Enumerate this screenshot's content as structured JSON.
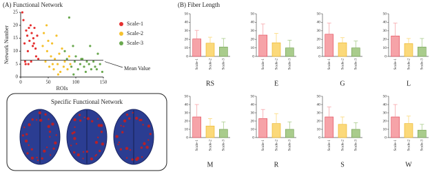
{
  "chart_data": [
    {
      "type": "scatter",
      "title": "(A) Functional  Network",
      "xlabel": "ROIs",
      "ylabel": "Network Number",
      "xlim": [
        0,
        150
      ],
      "xticks": [
        0,
        50,
        100,
        150
      ],
      "ylim": [
        0,
        25
      ],
      "yticks": [
        0,
        5,
        10,
        15,
        20,
        25
      ],
      "mean_value": 6.5,
      "annotation": "Mean Value",
      "series": [
        {
          "name": "Scale-1",
          "color": "#e53030",
          "x": [
            3,
            5,
            7,
            8,
            10,
            12,
            13,
            15,
            16,
            18,
            20,
            22,
            23,
            25,
            27,
            28,
            30,
            32,
            14,
            9,
            19,
            24
          ],
          "y": [
            25,
            22,
            13,
            6,
            18,
            16,
            10,
            19,
            14,
            20,
            17,
            12,
            15,
            19,
            11,
            8,
            16,
            7,
            5,
            5,
            6,
            13
          ]
        },
        {
          "name": "Scale-2",
          "color": "#f5c12e",
          "x": [
            40,
            42,
            45,
            48,
            50,
            52,
            55,
            57,
            60,
            62,
            65,
            67,
            70,
            72,
            75,
            78,
            80,
            85,
            88,
            90,
            47,
            58,
            68
          ],
          "y": [
            12,
            17,
            6,
            10,
            14,
            4,
            8,
            13,
            3,
            7,
            16,
            5,
            9,
            2,
            11,
            4,
            6,
            3,
            8,
            5,
            20,
            5,
            1
          ]
        },
        {
          "name": "Scale-3",
          "color": "#6aa84f",
          "x": [
            80,
            84,
            88,
            92,
            95,
            98,
            100,
            104,
            108,
            112,
            115,
            118,
            120,
            124,
            128,
            132,
            135,
            140,
            144,
            148,
            96,
            110,
            126,
            138
          ],
          "y": [
            10,
            7,
            23,
            4,
            12,
            6,
            8,
            3,
            5,
            7,
            4,
            2,
            6,
            5,
            3,
            6,
            4,
            9,
            5,
            2,
            1,
            7,
            12,
            3
          ]
        }
      ]
    },
    {
      "type": "bar",
      "title": "RS",
      "categories": [
        "Scale-1",
        "Scale-2",
        "Scale-3"
      ],
      "values": [
        20.5,
        15.5,
        11
      ],
      "errors": [
        10,
        7,
        10
      ],
      "colors": [
        "#f6a3a8",
        "#fbd97a",
        "#a9cc8c"
      ],
      "ylim": [
        0,
        50
      ],
      "yticks": [
        0,
        10,
        20,
        30,
        40,
        50
      ]
    },
    {
      "type": "bar",
      "title": "E",
      "categories": [
        "Scale-1",
        "Scale-2",
        "Scale-3"
      ],
      "values": [
        25,
        16,
        10
      ],
      "errors": [
        13,
        11,
        9
      ],
      "colors": [
        "#f6a3a8",
        "#fbd97a",
        "#a9cc8c"
      ],
      "ylim": [
        0,
        50
      ],
      "yticks": [
        0,
        10,
        20,
        30,
        40,
        50
      ]
    },
    {
      "type": "bar",
      "title": "G",
      "categories": [
        "Scale-1",
        "Scale-2",
        "Scale-3"
      ],
      "values": [
        26,
        16,
        10
      ],
      "errors": [
        13,
        6,
        8
      ],
      "colors": [
        "#f6a3a8",
        "#fbd97a",
        "#a9cc8c"
      ],
      "ylim": [
        0,
        50
      ],
      "yticks": [
        0,
        10,
        20,
        30,
        40,
        50
      ]
    },
    {
      "type": "bar",
      "title": "L",
      "categories": [
        "Scale-1",
        "Scale-2",
        "Scale-3"
      ],
      "values": [
        24,
        15,
        11
      ],
      "errors": [
        15,
        6,
        10
      ],
      "colors": [
        "#f6a3a8",
        "#fbd97a",
        "#a9cc8c"
      ],
      "ylim": [
        0,
        50
      ],
      "yticks": [
        0,
        10,
        20,
        30,
        40,
        50
      ]
    },
    {
      "type": "bar",
      "title": "M",
      "categories": [
        "Scale-1",
        "Scale-2",
        "Scale-3"
      ],
      "values": [
        25,
        14,
        10
      ],
      "errors": [
        15,
        9,
        9
      ],
      "colors": [
        "#f6a3a8",
        "#fbd97a",
        "#a9cc8c"
      ],
      "ylim": [
        0,
        50
      ],
      "yticks": [
        0,
        10,
        20,
        30,
        40,
        50
      ]
    },
    {
      "type": "bar",
      "title": "R",
      "categories": [
        "Scale-1",
        "Scale-2",
        "Scale-3"
      ],
      "values": [
        23,
        17,
        10
      ],
      "errors": [
        11,
        12,
        9
      ],
      "colors": [
        "#f6a3a8",
        "#fbd97a",
        "#a9cc8c"
      ],
      "ylim": [
        0,
        50
      ],
      "yticks": [
        0,
        10,
        20,
        30,
        40,
        50
      ]
    },
    {
      "type": "bar",
      "title": "S",
      "categories": [
        "Scale-1",
        "Scale-2",
        "Scale-3"
      ],
      "values": [
        25,
        16,
        10
      ],
      "errors": [
        12,
        9,
        8
      ],
      "colors": [
        "#f6a3a8",
        "#fbd97a",
        "#a9cc8c"
      ],
      "ylim": [
        0,
        50
      ],
      "yticks": [
        0,
        10,
        20,
        30,
        40,
        50
      ]
    },
    {
      "type": "bar",
      "title": "W",
      "categories": [
        "Scale-1",
        "Scale-2",
        "Scale-3"
      ],
      "values": [
        25,
        17,
        9
      ],
      "errors": [
        15,
        9,
        7
      ],
      "colors": [
        "#f6a3a8",
        "#fbd97a",
        "#a9cc8c"
      ],
      "ylim": [
        0,
        50
      ],
      "yticks": [
        0,
        10,
        20,
        30,
        40,
        50
      ]
    }
  ],
  "panel_b": {
    "title": "(B) Fiber Length"
  },
  "brain_panel": {
    "title": "Specific Functional Network"
  }
}
